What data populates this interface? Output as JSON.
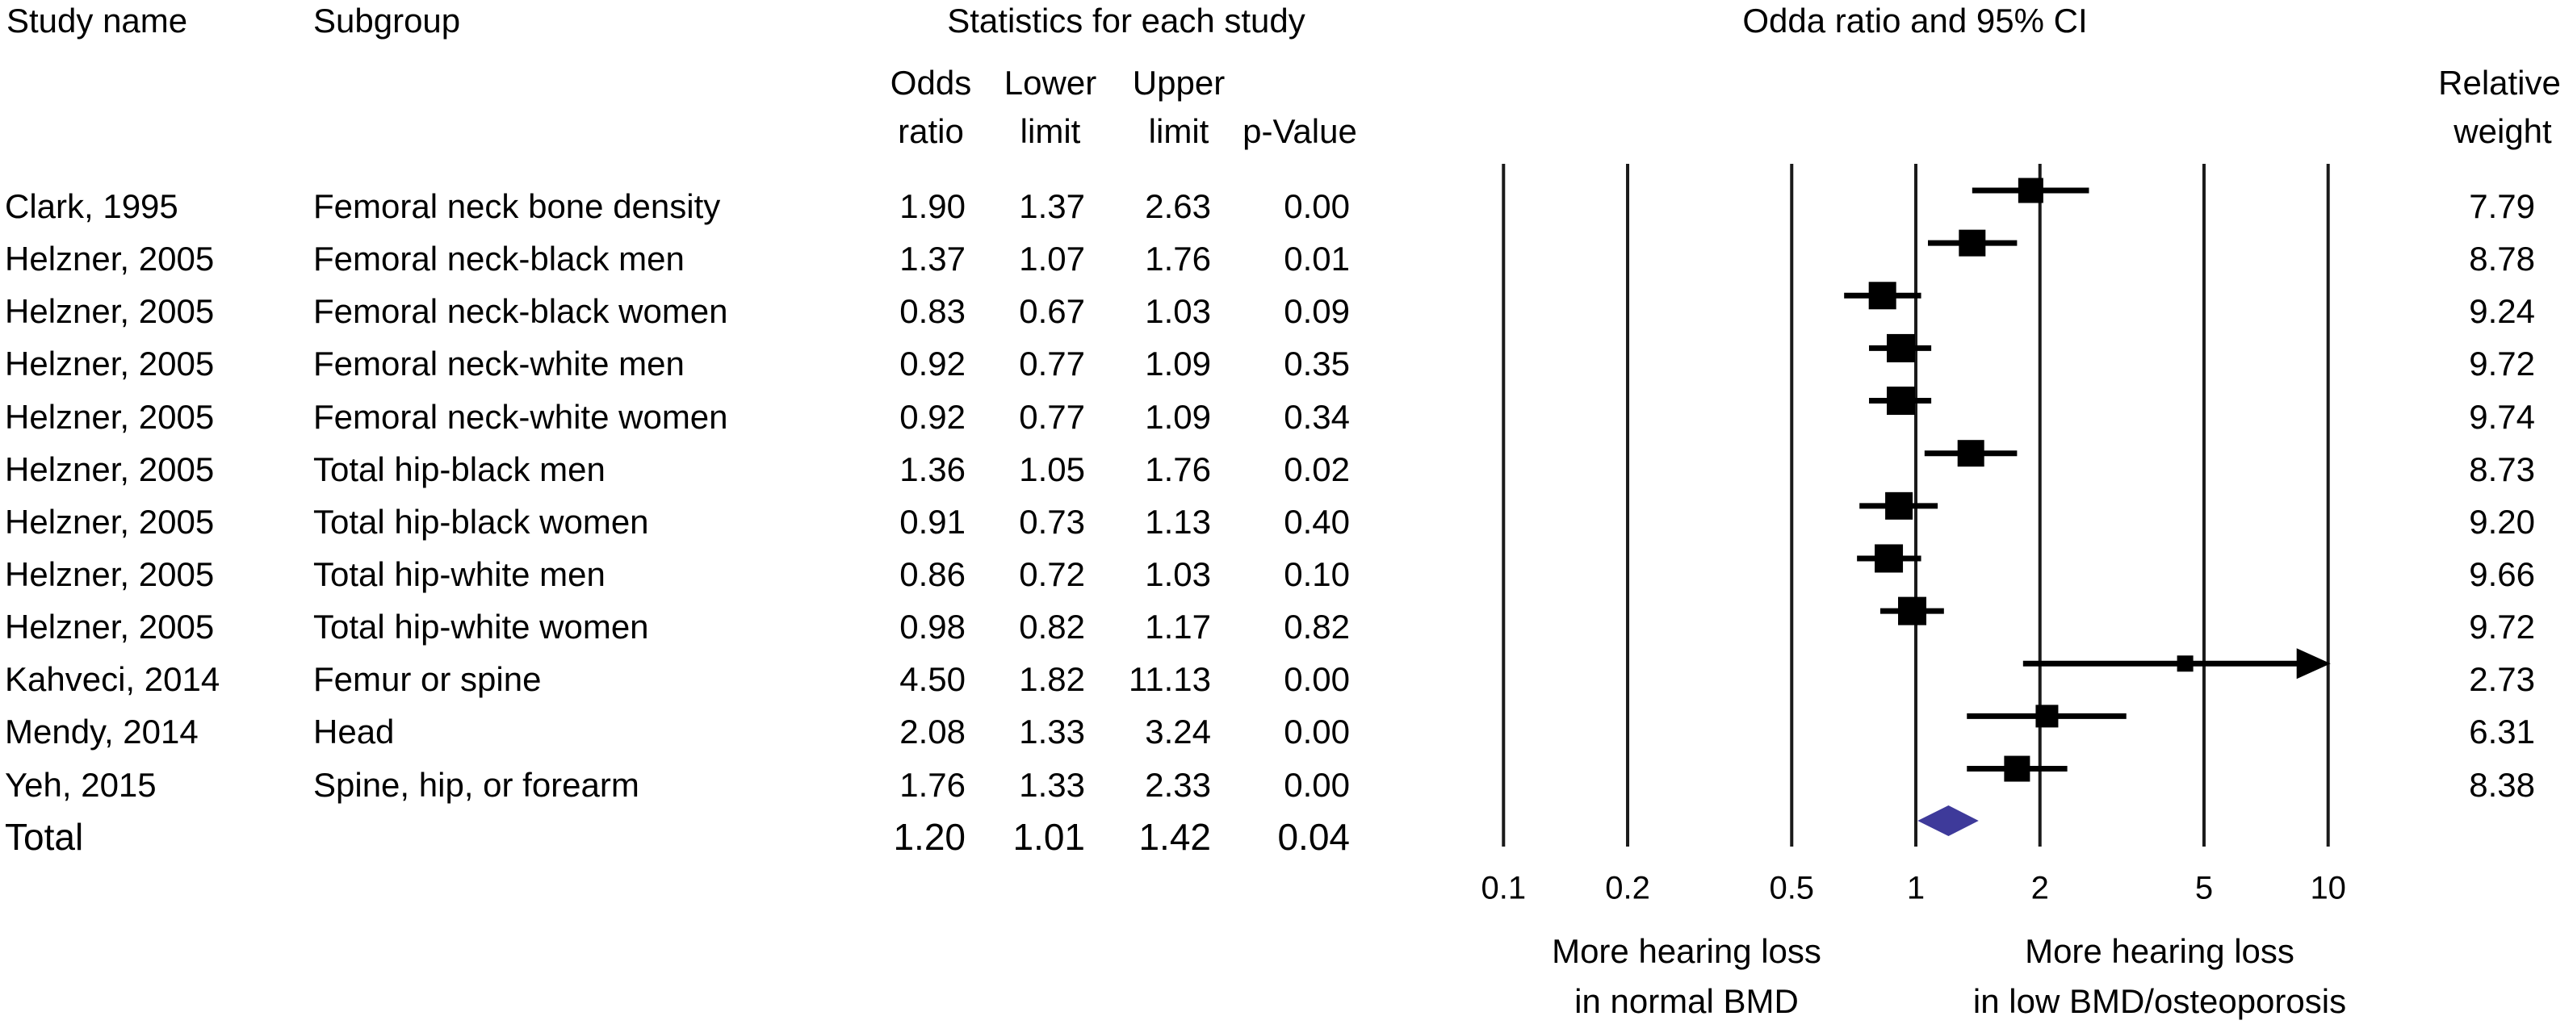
{
  "header": {
    "study_name": "Study name",
    "subgroup": "Subgroup",
    "stats_title": "Statistics for each study",
    "plot_title": "Odda ratio and 95% CI",
    "col_odds_line1": "Odds",
    "col_odds_line2": "ratio",
    "col_lower_line1": "Lower",
    "col_lower_line2": "limit",
    "col_upper_line1": "Upper",
    "col_upper_line2": "limit",
    "col_p": "p-Value",
    "col_weight_line1": "Relative",
    "col_weight_line2": "weight"
  },
  "annotations": {
    "left_line1": "More hearing loss",
    "left_line2": "in normal BMD",
    "right_line1": "More hearing loss",
    "right_line2": "in low BMD/osteoporosis"
  },
  "total_label": "Total",
  "colors": {
    "marker": "#000000",
    "diamond": "#3E3A9A",
    "gridline": "#1a1a1a"
  },
  "chart_data": {
    "type": "scatter",
    "variant": "forest-plot",
    "title": "Odda ratio and 95% CI",
    "x_scale": "log10",
    "x_range": [
      0.1,
      10
    ],
    "x_ticks": [
      0.1,
      0.2,
      0.5,
      1,
      2,
      5,
      10
    ],
    "grid": "vertical-lines-at-ticks",
    "legend": "none",
    "studies": [
      {
        "study": "Clark, 1995",
        "subgroup": "Femoral neck bone density",
        "odds_ratio": 1.9,
        "lower": 1.37,
        "upper": 2.63,
        "p_value": 0.0,
        "weight": 7.79
      },
      {
        "study": "Helzner, 2005",
        "subgroup": "Femoral neck-black men",
        "odds_ratio": 1.37,
        "lower": 1.07,
        "upper": 1.76,
        "p_value": 0.01,
        "weight": 8.78
      },
      {
        "study": "Helzner, 2005",
        "subgroup": "Femoral neck-black women",
        "odds_ratio": 0.83,
        "lower": 0.67,
        "upper": 1.03,
        "p_value": 0.09,
        "weight": 9.24
      },
      {
        "study": "Helzner, 2005",
        "subgroup": "Femoral neck-white men",
        "odds_ratio": 0.92,
        "lower": 0.77,
        "upper": 1.09,
        "p_value": 0.35,
        "weight": 9.72
      },
      {
        "study": "Helzner, 2005",
        "subgroup": "Femoral neck-white women",
        "odds_ratio": 0.92,
        "lower": 0.77,
        "upper": 1.09,
        "p_value": 0.34,
        "weight": 9.74
      },
      {
        "study": "Helzner, 2005",
        "subgroup": "Total hip-black men",
        "odds_ratio": 1.36,
        "lower": 1.05,
        "upper": 1.76,
        "p_value": 0.02,
        "weight": 8.73
      },
      {
        "study": "Helzner, 2005",
        "subgroup": "Total hip-black women",
        "odds_ratio": 0.91,
        "lower": 0.73,
        "upper": 1.13,
        "p_value": 0.4,
        "weight": 9.2
      },
      {
        "study": "Helzner, 2005",
        "subgroup": "Total hip-white men",
        "odds_ratio": 0.86,
        "lower": 0.72,
        "upper": 1.03,
        "p_value": 0.1,
        "weight": 9.66
      },
      {
        "study": "Helzner, 2005",
        "subgroup": "Total hip-white women",
        "odds_ratio": 0.98,
        "lower": 0.82,
        "upper": 1.17,
        "p_value": 0.82,
        "weight": 9.72
      },
      {
        "study": "Kahveci, 2014",
        "subgroup": "Femur or spine",
        "odds_ratio": 4.5,
        "lower": 1.82,
        "upper": 11.13,
        "p_value": 0.0,
        "weight": 2.73
      },
      {
        "study": "Mendy, 2014",
        "subgroup": "Head",
        "odds_ratio": 2.08,
        "lower": 1.33,
        "upper": 3.24,
        "p_value": 0.0,
        "weight": 6.31
      },
      {
        "study": "Yeh, 2015",
        "subgroup": "Spine, hip, or forearm",
        "odds_ratio": 1.76,
        "lower": 1.33,
        "upper": 2.33,
        "p_value": 0.0,
        "weight": 8.38
      }
    ],
    "total": {
      "odds_ratio": 1.2,
      "lower": 1.01,
      "upper": 1.42,
      "p_value": 0.04
    }
  }
}
